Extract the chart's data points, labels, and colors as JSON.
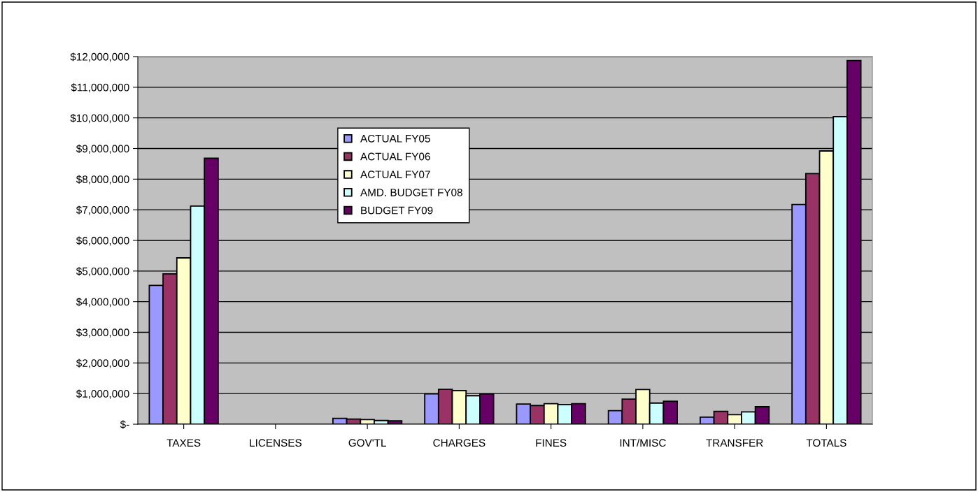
{
  "chart_data": {
    "type": "bar",
    "categories": [
      "TAXES",
      "LICENSES",
      "GOV'TL",
      "CHARGES",
      "FINES",
      "INT/MISC",
      "TRANSFER",
      "TOTALS"
    ],
    "series": [
      {
        "name": "ACTUAL FY05",
        "color": "#9999ff",
        "values": [
          4530000,
          null,
          190000,
          990000,
          660000,
          440000,
          230000,
          7170000
        ]
      },
      {
        "name": "ACTUAL FY06",
        "color": "#993366",
        "values": [
          4910000,
          null,
          170000,
          1140000,
          610000,
          820000,
          420000,
          8180000
        ]
      },
      {
        "name": "ACTUAL FY07",
        "color": "#ffffcc",
        "values": [
          5430000,
          null,
          150000,
          1100000,
          670000,
          1130000,
          310000,
          8920000
        ]
      },
      {
        "name": "AMD. BUDGET FY08",
        "color": "#ccffff",
        "values": [
          7120000,
          null,
          120000,
          930000,
          640000,
          690000,
          400000,
          10040000
        ]
      },
      {
        "name": "BUDGET FY09",
        "color": "#660066",
        "values": [
          8680000,
          null,
          110000,
          990000,
          670000,
          750000,
          570000,
          11870000
        ]
      }
    ],
    "ylim": [
      0,
      12000000
    ],
    "yticks": [
      {
        "value": 0,
        "label": "$-"
      },
      {
        "value": 1000000,
        "label": "$1,000,000"
      },
      {
        "value": 2000000,
        "label": "$2,000,000"
      },
      {
        "value": 3000000,
        "label": "$3,000,000"
      },
      {
        "value": 4000000,
        "label": "$4,000,000"
      },
      {
        "value": 5000000,
        "label": "$5,000,000"
      },
      {
        "value": 6000000,
        "label": "$6,000,000"
      },
      {
        "value": 7000000,
        "label": "$7,000,000"
      },
      {
        "value": 8000000,
        "label": "$8,000,000"
      },
      {
        "value": 9000000,
        "label": "$9,000,000"
      },
      {
        "value": 10000000,
        "label": "$10,000,000"
      },
      {
        "value": 11000000,
        "label": "$11,000,000"
      },
      {
        "value": 12000000,
        "label": "$12,000,000"
      }
    ],
    "grid": "y",
    "legend": "top"
  }
}
